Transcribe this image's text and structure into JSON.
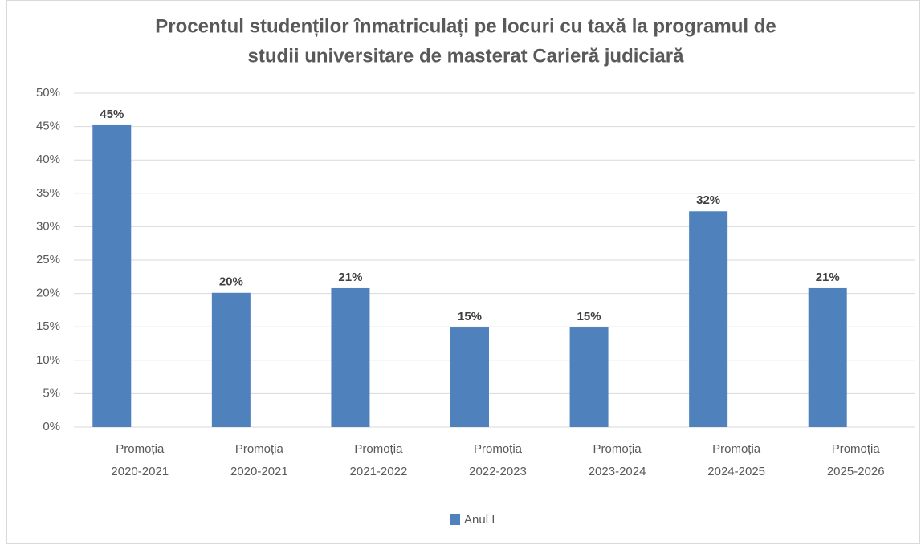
{
  "chart_data": {
    "type": "bar",
    "title": [
      "Procentul studenților înmatriculați pe locuri cu taxă la programul de",
      "studii universitare de masterat Carieră judiciară"
    ],
    "categories": [
      "Promoția 2020-2021",
      "Promoția 2020-2021",
      "Promoția 2021-2022",
      "Promoția 2022-2023",
      "Promoția 2023-2024",
      "Promoția 2024-2025",
      "Promoția 2025-2026"
    ],
    "series": [
      {
        "name": "Anul I",
        "color": "#4f81bd",
        "values": [
          45.2,
          20.1,
          20.8,
          14.9,
          14.9,
          32.3,
          20.8
        ],
        "value_labels": [
          "45%",
          "20%",
          "21%",
          "15%",
          "15%",
          "32%",
          "21%"
        ]
      }
    ],
    "ylim": [
      0,
      50
    ],
    "yticks": [
      {
        "value": 0,
        "label": "0%"
      },
      {
        "value": 5,
        "label": "5%"
      },
      {
        "value": 10,
        "label": "10%"
      },
      {
        "value": 15,
        "label": "15%"
      },
      {
        "value": 20,
        "label": "20%"
      },
      {
        "value": 25,
        "label": "25%"
      },
      {
        "value": 30,
        "label": "30%"
      },
      {
        "value": 35,
        "label": "35%"
      },
      {
        "value": 40,
        "label": "40%"
      },
      {
        "value": 45,
        "label": "45%"
      },
      {
        "value": 50,
        "label": "50%"
      }
    ],
    "grid": true,
    "legend": "bottom"
  }
}
